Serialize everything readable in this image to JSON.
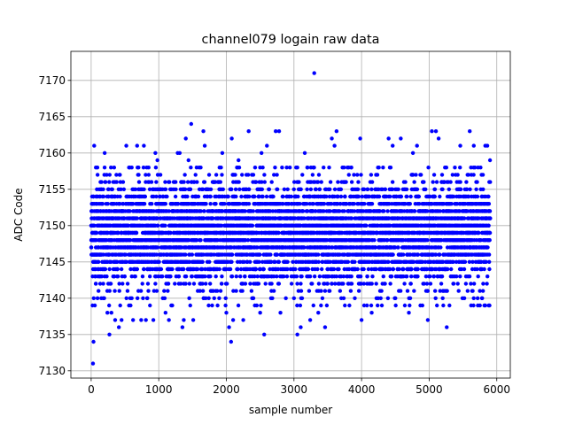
{
  "chart_data": {
    "type": "scatter",
    "title": "channel079 logain raw data",
    "xlabel": "sample number",
    "ylabel": "ADC Code",
    "xlim": [
      -300,
      6200
    ],
    "ylim": [
      7129,
      7174
    ],
    "x_ticks": [
      0,
      1000,
      2000,
      3000,
      4000,
      5000,
      6000
    ],
    "y_ticks": [
      7130,
      7135,
      7140,
      7145,
      7150,
      7155,
      7160,
      7165,
      7170
    ],
    "grid": true,
    "marker_color": "#0000ff",
    "marker": "circle",
    "series": [
      {
        "sample_count": 5904,
        "x_range": [
          0,
          5904
        ],
        "typical_range": [
          7139,
          7158
        ],
        "center": 7149,
        "points": [
          [
            27,
            7131
          ],
          [
            35,
            7134
          ],
          [
            20,
            7139
          ],
          [
            55,
            7139
          ],
          [
            45,
            7161
          ],
          [
            70,
            7158
          ],
          [
            95,
            7157
          ],
          [
            150,
            7140
          ],
          [
            180,
            7140
          ],
          [
            200,
            7160
          ],
          [
            230,
            7157
          ],
          [
            240,
            7138
          ],
          [
            270,
            7135
          ],
          [
            300,
            7138
          ],
          [
            340,
            7158
          ],
          [
            355,
            7137
          ],
          [
            410,
            7136
          ],
          [
            430,
            7139
          ],
          [
            450,
            7137
          ],
          [
            520,
            7161
          ],
          [
            560,
            7158
          ],
          [
            560,
            7139
          ],
          [
            600,
            7140
          ],
          [
            620,
            7137
          ],
          [
            680,
            7161
          ],
          [
            700,
            7158
          ],
          [
            740,
            7137
          ],
          [
            780,
            7161
          ],
          [
            810,
            7137
          ],
          [
            850,
            7158
          ],
          [
            870,
            7139
          ],
          [
            920,
            7137
          ],
          [
            950,
            7160
          ],
          [
            980,
            7159
          ],
          [
            1060,
            7140
          ],
          [
            1100,
            7138
          ],
          [
            1150,
            7137
          ],
          [
            1200,
            7139
          ],
          [
            1280,
            7160
          ],
          [
            1310,
            7160
          ],
          [
            1350,
            7136
          ],
          [
            1370,
            7137
          ],
          [
            1400,
            7162
          ],
          [
            1440,
            7159
          ],
          [
            1480,
            7164
          ],
          [
            1510,
            7137
          ],
          [
            1560,
            7158
          ],
          [
            1620,
            7158
          ],
          [
            1660,
            7163
          ],
          [
            1680,
            7161
          ],
          [
            1740,
            7140
          ],
          [
            1790,
            7139
          ],
          [
            1870,
            7139
          ],
          [
            1940,
            7160
          ],
          [
            2000,
            7138
          ],
          [
            2040,
            7136
          ],
          [
            2070,
            7134
          ],
          [
            2080,
            7162
          ],
          [
            2100,
            7137
          ],
          [
            2180,
            7159
          ],
          [
            2250,
            7137
          ],
          [
            2330,
            7163
          ],
          [
            2400,
            7140
          ],
          [
            2450,
            7139
          ],
          [
            2500,
            7138
          ],
          [
            2520,
            7160
          ],
          [
            2560,
            7135
          ],
          [
            2600,
            7161
          ],
          [
            2680,
            7140
          ],
          [
            2730,
            7163
          ],
          [
            2780,
            7163
          ],
          [
            2800,
            7138
          ],
          [
            2880,
            7140
          ],
          [
            2940,
            7158
          ],
          [
            3000,
            7140
          ],
          [
            3050,
            7135
          ],
          [
            3100,
            7136
          ],
          [
            3120,
            7140
          ],
          [
            3160,
            7160
          ],
          [
            3200,
            7158
          ],
          [
            3240,
            7137
          ],
          [
            3300,
            7171
          ],
          [
            3360,
            7138
          ],
          [
            3400,
            7139
          ],
          [
            3460,
            7136
          ],
          [
            3520,
            7158
          ],
          [
            3560,
            7162
          ],
          [
            3600,
            7161
          ],
          [
            3630,
            7163
          ],
          [
            3700,
            7140
          ],
          [
            3740,
            7158
          ],
          [
            3820,
            7139
          ],
          [
            3900,
            7140
          ],
          [
            3980,
            7162
          ],
          [
            4000,
            7137
          ],
          [
            4080,
            7139
          ],
          [
            4150,
            7138
          ],
          [
            4220,
            7140
          ],
          [
            4300,
            7139
          ],
          [
            4400,
            7162
          ],
          [
            4460,
            7161
          ],
          [
            4500,
            7140
          ],
          [
            4580,
            7162
          ],
          [
            4640,
            7139
          ],
          [
            4700,
            7138
          ],
          [
            4760,
            7160
          ],
          [
            4820,
            7161
          ],
          [
            4900,
            7139
          ],
          [
            4980,
            7137
          ],
          [
            5040,
            7163
          ],
          [
            5100,
            7163
          ],
          [
            5140,
            7162
          ],
          [
            5200,
            7140
          ],
          [
            5260,
            7136
          ],
          [
            5300,
            7139
          ],
          [
            5380,
            7158
          ],
          [
            5460,
            7161
          ],
          [
            5520,
            7140
          ],
          [
            5600,
            7163
          ],
          [
            5660,
            7161
          ],
          [
            5720,
            7139
          ],
          [
            5780,
            7140
          ],
          [
            5830,
            7161
          ],
          [
            5860,
            7161
          ],
          [
            5880,
            7139
          ],
          [
            5900,
            7159
          ]
        ]
      }
    ]
  }
}
